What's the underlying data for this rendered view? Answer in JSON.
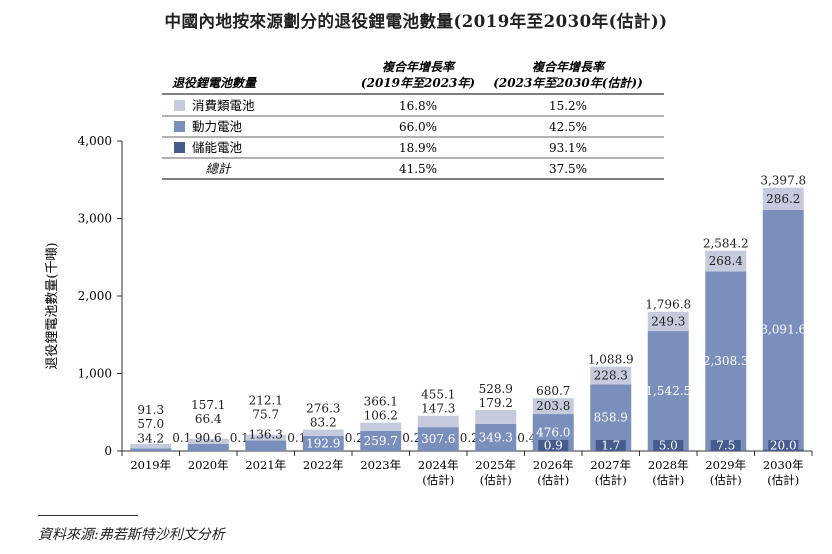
{
  "title": "中國內地按來源劃分的退役鋰電池數量(2019年至2030年(估計))",
  "source": "資料來源:弗若斯特沙利文分析",
  "colors": {
    "consumer": "#c5cbdc",
    "power": "#7b8fbd",
    "storage": "#465b8e",
    "axis": "#333333"
  },
  "legend_table": {
    "header_label": "退役鋰電池數量",
    "col1": [
      "複合年增長率",
      "(2019年至2023年)"
    ],
    "col2": [
      "複合年增長率",
      "(2023年至2030年(估計))"
    ],
    "rows": [
      {
        "label": "消費類電池",
        "series": "consumer",
        "c1": "16.8%",
        "c2": "15.2%"
      },
      {
        "label": "動力電池",
        "series": "power",
        "c1": "66.0%",
        "c2": "42.5%"
      },
      {
        "label": "儲能電池",
        "series": "storage",
        "c1": "18.9%",
        "c2": "93.1%"
      },
      {
        "label": "總計",
        "series": null,
        "c1": "41.5%",
        "c2": "37.5%"
      }
    ]
  },
  "chart_data": {
    "type": "bar",
    "stacked": true,
    "ylabel": "退役鋰電池數量(千噸)",
    "ylim": [
      0,
      4000
    ],
    "yticks": [
      "0",
      "1,000",
      "2,000",
      "3,000",
      "4,000"
    ],
    "ytick_values": [
      0,
      1000,
      2000,
      3000,
      4000
    ],
    "categories": [
      [
        "2019年"
      ],
      [
        "2020年"
      ],
      [
        "2021年"
      ],
      [
        "2022年"
      ],
      [
        "2023年"
      ],
      [
        "2024年",
        "(估計)"
      ],
      [
        "2025年",
        "(估計)"
      ],
      [
        "2026年",
        "(估計)"
      ],
      [
        "2027年",
        "(估計)"
      ],
      [
        "2028年",
        "(估計)"
      ],
      [
        "2029年",
        "(估計)"
      ],
      [
        "2030年",
        "(估計)"
      ]
    ],
    "series": [
      {
        "name": "儲能電池",
        "key": "storage",
        "values": [
          0.1,
          0.1,
          0.1,
          0.2,
          0.2,
          0.2,
          0.4,
          0.9,
          1.7,
          5.0,
          7.5,
          20.0
        ],
        "labels": [
          "0.1",
          "0.1",
          "0.1",
          "0.2",
          "0.2",
          "0.2",
          "0.4",
          "0.9",
          "1.7",
          "5.0",
          "7.5",
          "20.0"
        ]
      },
      {
        "name": "動力電池",
        "key": "power",
        "values": [
          34.2,
          90.6,
          136.3,
          192.9,
          259.7,
          307.6,
          349.3,
          476.0,
          858.9,
          1542.5,
          2308.3,
          3091.6
        ],
        "labels": [
          "34.2",
          "90.6",
          "136.3",
          "192.9",
          "259.7",
          "307.6",
          "349.3",
          "476.0",
          "858.9",
          "1,542.5",
          "2,308.3",
          "3,091.6"
        ]
      },
      {
        "name": "消費類電池",
        "key": "consumer",
        "values": [
          57.0,
          66.4,
          75.7,
          83.2,
          106.2,
          147.3,
          179.2,
          203.8,
          228.3,
          249.3,
          268.4,
          286.2
        ],
        "labels": [
          "57.0",
          "66.4",
          "75.7",
          "83.2",
          "106.2",
          "147.3",
          "179.2",
          "203.8",
          "228.3",
          "249.3",
          "268.4",
          "286.2"
        ]
      }
    ],
    "totals": [
      91.3,
      157.1,
      212.1,
      276.3,
      366.1,
      455.1,
      528.9,
      680.7,
      1088.9,
      1796.8,
      2584.2,
      3397.8
    ],
    "total_labels": [
      "91.3",
      "157.1",
      "212.1",
      "276.3",
      "366.1",
      "455.1",
      "528.9",
      "680.7",
      "1,088.9",
      "1,796.8",
      "2,584.2",
      "3,397.8"
    ]
  }
}
